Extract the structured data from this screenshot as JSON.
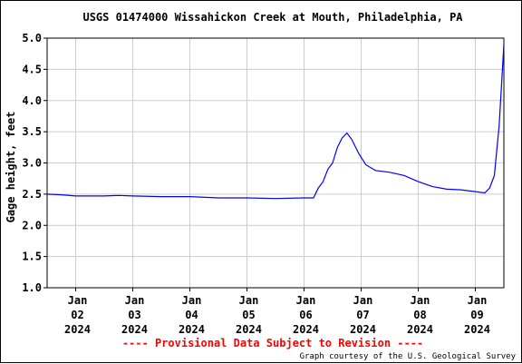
{
  "chart_data": {
    "type": "line",
    "title": "USGS 01474000 Wissahickon Creek at Mouth, Philadelphia, PA",
    "ylabel": "Gage height, feet",
    "xlabel": "",
    "ylim": [
      1.0,
      5.0
    ],
    "xlim": [
      "2024-01-01T12:00",
      "2024-01-09T12:00"
    ],
    "yticks": [
      "1.0",
      "1.5",
      "2.0",
      "2.5",
      "3.0",
      "3.5",
      "4.0",
      "4.5",
      "5.0"
    ],
    "xticks": [
      {
        "date": "2024-01-02",
        "lines": [
          "Jan",
          "02",
          "2024"
        ]
      },
      {
        "date": "2024-01-03",
        "lines": [
          "Jan",
          "03",
          "2024"
        ]
      },
      {
        "date": "2024-01-04",
        "lines": [
          "Jan",
          "04",
          "2024"
        ]
      },
      {
        "date": "2024-01-05",
        "lines": [
          "Jan",
          "05",
          "2024"
        ]
      },
      {
        "date": "2024-01-06",
        "lines": [
          "Jan",
          "06",
          "2024"
        ]
      },
      {
        "date": "2024-01-07",
        "lines": [
          "Jan",
          "07",
          "2024"
        ]
      },
      {
        "date": "2024-01-08",
        "lines": [
          "Jan",
          "08",
          "2024"
        ]
      },
      {
        "date": "2024-01-09",
        "lines": [
          "Jan",
          "09",
          "2024"
        ]
      }
    ],
    "grid": true,
    "series": [
      {
        "color": "#0000ff",
        "points": [
          [
            "2024-01-01T12:00",
            2.5
          ],
          [
            "2024-01-01T18:00",
            2.49
          ],
          [
            "2024-01-02T00:00",
            2.47
          ],
          [
            "2024-01-02T12:00",
            2.47
          ],
          [
            "2024-01-02T18:00",
            2.48
          ],
          [
            "2024-01-03T00:00",
            2.47
          ],
          [
            "2024-01-03T12:00",
            2.46
          ],
          [
            "2024-01-04T00:00",
            2.46
          ],
          [
            "2024-01-04T12:00",
            2.44
          ],
          [
            "2024-01-05T00:00",
            2.44
          ],
          [
            "2024-01-05T12:00",
            2.43
          ],
          [
            "2024-01-06T00:00",
            2.44
          ],
          [
            "2024-01-06T04:00",
            2.44
          ],
          [
            "2024-01-06T06:00",
            2.6
          ],
          [
            "2024-01-06T08:00",
            2.7
          ],
          [
            "2024-01-06T10:00",
            2.9
          ],
          [
            "2024-01-06T12:00",
            3.0
          ],
          [
            "2024-01-06T14:00",
            3.25
          ],
          [
            "2024-01-06T16:00",
            3.4
          ],
          [
            "2024-01-06T18:00",
            3.48
          ],
          [
            "2024-01-06T20:00",
            3.38
          ],
          [
            "2024-01-06T23:00",
            3.15
          ],
          [
            "2024-01-07T02:00",
            2.97
          ],
          [
            "2024-01-07T06:00",
            2.88
          ],
          [
            "2024-01-07T12:00",
            2.85
          ],
          [
            "2024-01-07T18:00",
            2.8
          ],
          [
            "2024-01-08T00:00",
            2.7
          ],
          [
            "2024-01-08T06:00",
            2.62
          ],
          [
            "2024-01-08T12:00",
            2.58
          ],
          [
            "2024-01-08T18:00",
            2.57
          ],
          [
            "2024-01-09T00:00",
            2.54
          ],
          [
            "2024-01-09T04:00",
            2.52
          ],
          [
            "2024-01-09T06:00",
            2.6
          ],
          [
            "2024-01-09T08:00",
            2.8
          ],
          [
            "2024-01-09T10:00",
            3.6
          ],
          [
            "2024-01-09T12:00",
            4.9
          ]
        ]
      }
    ]
  },
  "footer": {
    "provisional": "---- Provisional Data Subject to Revision ----",
    "courtesy": "Graph courtesy of the U.S. Geological Survey"
  }
}
